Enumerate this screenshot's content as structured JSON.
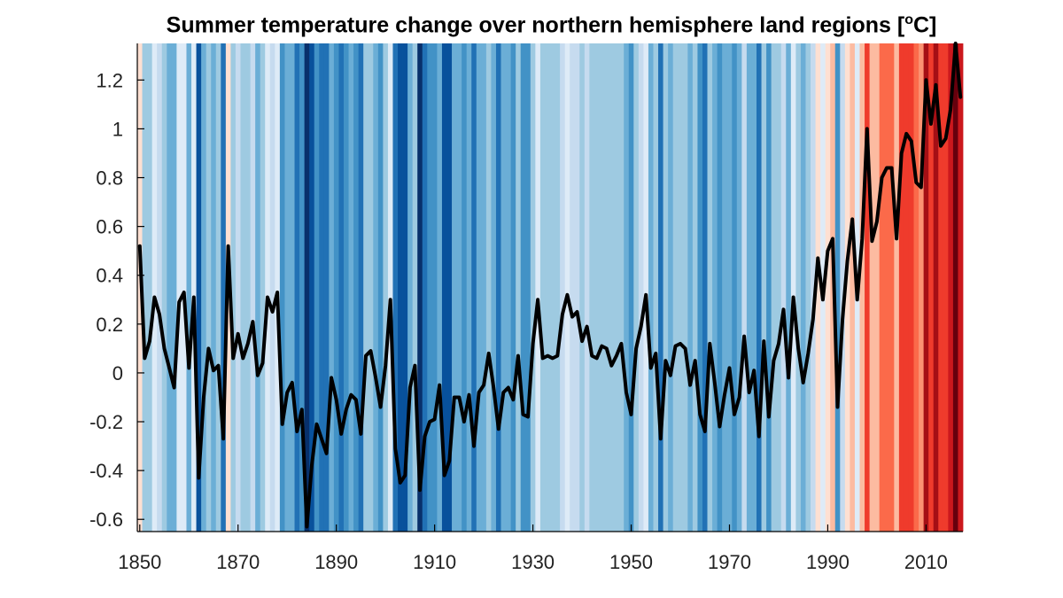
{
  "chart_data": {
    "type": "line",
    "title": {
      "text": "Summer temperature change over northern hemisphere land regions [",
      "sup": "o",
      "tail": "C]"
    },
    "xlabel": "",
    "ylabel": "",
    "xlim": [
      1849.5,
      2017.5
    ],
    "ylim": [
      -0.65,
      1.35
    ],
    "x_ticks": [
      "1850",
      "1870",
      "1890",
      "1910",
      "1930",
      "1950",
      "1970",
      "1990",
      "2010"
    ],
    "y_ticks": [
      "-0.6",
      "-0.4",
      "-0.2",
      "0",
      "0.2",
      "0.4",
      "0.6",
      "0.8",
      "1",
      "1.2"
    ],
    "grid": false,
    "legend": "none",
    "background": "warming stripes colored by each year's anomaly (blue = cool, red = warm)",
    "series": [
      {
        "color": "#000000",
        "x": [
          1850,
          1851,
          1852,
          1853,
          1854,
          1855,
          1856,
          1857,
          1858,
          1859,
          1860,
          1861,
          1862,
          1863,
          1864,
          1865,
          1866,
          1867,
          1868,
          1869,
          1870,
          1871,
          1872,
          1873,
          1874,
          1875,
          1876,
          1877,
          1878,
          1879,
          1880,
          1881,
          1882,
          1883,
          1884,
          1885,
          1886,
          1887,
          1888,
          1889,
          1890,
          1891,
          1892,
          1893,
          1894,
          1895,
          1896,
          1897,
          1898,
          1899,
          1900,
          1901,
          1902,
          1903,
          1904,
          1905,
          1906,
          1907,
          1908,
          1909,
          1910,
          1911,
          1912,
          1913,
          1914,
          1915,
          1916,
          1917,
          1918,
          1919,
          1920,
          1921,
          1922,
          1923,
          1924,
          1925,
          1926,
          1927,
          1928,
          1929,
          1930,
          1931,
          1932,
          1933,
          1934,
          1935,
          1936,
          1937,
          1938,
          1939,
          1940,
          1941,
          1942,
          1943,
          1944,
          1945,
          1946,
          1947,
          1948,
          1949,
          1950,
          1951,
          1952,
          1953,
          1954,
          1955,
          1956,
          1957,
          1958,
          1959,
          1960,
          1961,
          1962,
          1963,
          1964,
          1965,
          1966,
          1967,
          1968,
          1969,
          1970,
          1971,
          1972,
          1973,
          1974,
          1975,
          1976,
          1977,
          1978,
          1979,
          1980,
          1981,
          1982,
          1983,
          1984,
          1985,
          1986,
          1987,
          1988,
          1989,
          1990,
          1991,
          1992,
          1993,
          1994,
          1995,
          1996,
          1997,
          1998,
          1999,
          2000,
          2001,
          2002,
          2003,
          2004,
          2005,
          2006,
          2007,
          2008,
          2009,
          2010,
          2011,
          2012,
          2013,
          2014,
          2015,
          2016,
          2017
        ],
        "values": [
          0.52,
          0.06,
          0.13,
          0.31,
          0.24,
          0.1,
          0.02,
          -0.06,
          0.29,
          0.33,
          0.02,
          0.31,
          -0.43,
          -0.1,
          0.1,
          0.01,
          0.03,
          -0.27,
          0.52,
          0.06,
          0.16,
          0.06,
          0.12,
          0.21,
          -0.01,
          0.04,
          0.31,
          0.25,
          0.33,
          -0.21,
          -0.08,
          -0.04,
          -0.24,
          -0.15,
          -0.63,
          -0.38,
          -0.21,
          -0.27,
          -0.33,
          -0.02,
          -0.11,
          -0.25,
          -0.15,
          -0.09,
          -0.11,
          -0.25,
          0.07,
          0.09,
          -0.02,
          -0.14,
          0.03,
          0.3,
          -0.31,
          -0.45,
          -0.42,
          -0.06,
          0.03,
          -0.48,
          -0.26,
          -0.2,
          -0.19,
          -0.05,
          -0.42,
          -0.36,
          -0.1,
          -0.1,
          -0.2,
          -0.09,
          -0.3,
          -0.08,
          -0.05,
          0.08,
          -0.06,
          -0.23,
          -0.08,
          -0.06,
          -0.11,
          0.07,
          -0.17,
          -0.18,
          0.12,
          0.3,
          0.06,
          0.07,
          0.06,
          0.07,
          0.24,
          0.32,
          0.23,
          0.25,
          0.13,
          0.19,
          0.07,
          0.06,
          0.11,
          0.1,
          0.03,
          0.07,
          0.12,
          -0.08,
          -0.17,
          0.1,
          0.19,
          0.32,
          0.02,
          0.08,
          -0.27,
          0.05,
          -0.01,
          0.11,
          0.12,
          0.1,
          -0.05,
          0.05,
          -0.17,
          -0.24,
          0.12,
          -0.04,
          -0.22,
          -0.09,
          0.02,
          -0.17,
          -0.1,
          0.15,
          -0.08,
          0.01,
          -0.26,
          0.13,
          -0.18,
          0.05,
          0.12,
          0.26,
          -0.02,
          0.31,
          0.1,
          -0.04,
          0.08,
          0.22,
          0.47,
          0.3,
          0.5,
          0.55,
          -0.14,
          0.22,
          0.46,
          0.63,
          0.3,
          0.55,
          1.0,
          0.54,
          0.62,
          0.8,
          0.84,
          0.84,
          0.55,
          0.9,
          0.98,
          0.95,
          0.78,
          0.76,
          1.2,
          1.02,
          1.18,
          0.93,
          0.96,
          1.08,
          1.35,
          1.13
        ]
      }
    ]
  }
}
